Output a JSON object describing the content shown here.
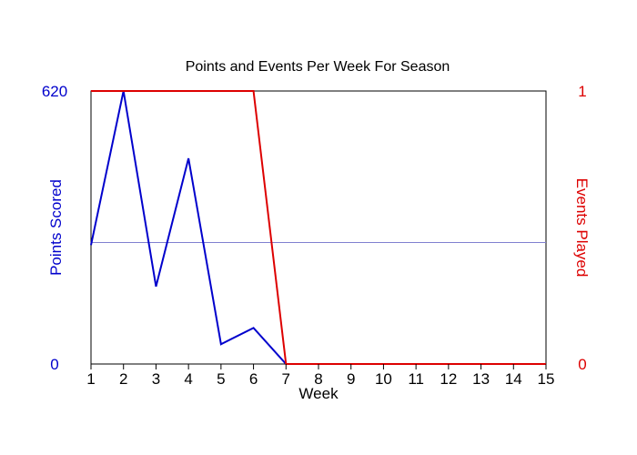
{
  "chart_data": {
    "type": "line",
    "title": "Points and Events Per Week For Season",
    "xlabel": "Week",
    "x": [
      1,
      2,
      3,
      4,
      5,
      6,
      7,
      8,
      9,
      10,
      11,
      12,
      13,
      14,
      15
    ],
    "x_ticks": [
      "1",
      "2",
      "3",
      "4",
      "5",
      "6",
      "7",
      "8",
      "9",
      "10",
      "11",
      "12",
      "13",
      "14",
      "15"
    ],
    "xlim": [
      1,
      15
    ],
    "left_axis": {
      "label": "Points Scored",
      "tick_labels": [
        "0",
        "620"
      ],
      "ylim": [
        0,
        620
      ],
      "color": "#0000cc"
    },
    "right_axis": {
      "label": "Events Played",
      "tick_labels": [
        "0",
        "1"
      ],
      "ylim": [
        0,
        1
      ],
      "color": "#dd0000"
    },
    "reference_line": {
      "axis": "left",
      "value": 276,
      "color": "#8080d0"
    },
    "series": [
      {
        "axis": "left",
        "color": "#0000cc",
        "values": [
          270,
          620,
          176,
          467,
          45,
          82,
          0,
          0,
          0,
          0,
          0,
          0,
          0,
          0,
          0
        ]
      },
      {
        "axis": "right",
        "color": "#dd0000",
        "values": [
          1,
          1,
          1,
          1,
          1,
          1,
          0,
          0,
          0,
          0,
          0,
          0,
          0,
          0,
          0
        ]
      }
    ],
    "grid": false,
    "legend": "none"
  }
}
